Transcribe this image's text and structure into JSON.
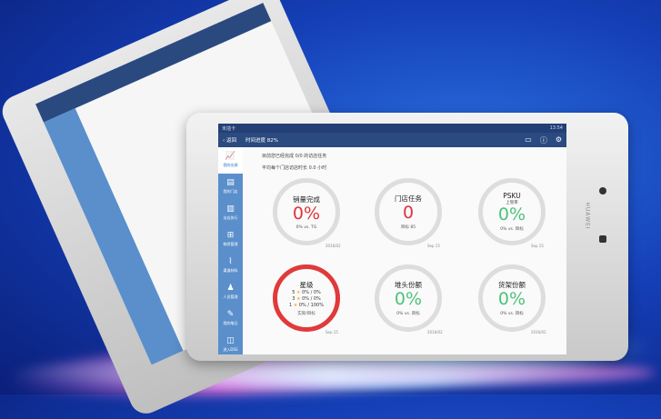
{
  "status": {
    "carrier": "未插卡",
    "time": "13:54"
  },
  "nav": {
    "back": "返回",
    "title": "时间进度 82%"
  },
  "sidebar": [
    {
      "label": "我的业绩",
      "icon": "chart-icon"
    },
    {
      "label": "我的门店",
      "icon": "store-icon"
    },
    {
      "label": "访店执行",
      "icon": "clipboard-icon"
    },
    {
      "label": "物资管理",
      "icon": "grid-icon"
    },
    {
      "label": "渠道材料",
      "icon": "paperclip-icon"
    },
    {
      "label": "人员管理",
      "icon": "people-icon"
    },
    {
      "label": "我的笔记",
      "icon": "note-icon"
    },
    {
      "label": "进入DSS",
      "icon": "dss-icon"
    }
  ],
  "info": {
    "line1": "目前您已经完成 0/0 的访店任务",
    "line2": "平均每个门店访店时长 0.0 小时"
  },
  "gauges": [
    {
      "title": "销量完成",
      "value": "0%",
      "compare": "0% vs. TG",
      "date": "2016/02",
      "color": "red"
    },
    {
      "title": "门店任务",
      "value": "0",
      "compare": "目标 85",
      "date": "Sep 15",
      "color": "red"
    },
    {
      "title": "PSKU",
      "sub": "上架率",
      "value": "0%",
      "compare": "0% vs. 目标",
      "date": "Sep 15",
      "color": "green"
    },
    {
      "title": "星级",
      "rows": [
        {
          "star": "5",
          "val": "0% / 0%"
        },
        {
          "star": "3",
          "val": "0% / 0%"
        },
        {
          "star": "1",
          "val": "0% / 100%"
        }
      ],
      "compare": "实际/目标",
      "date": "Sep 15"
    },
    {
      "title": "堆头份额",
      "value": "0%",
      "compare": "0% vs. 目标",
      "date": "2016/02",
      "color": "green"
    },
    {
      "title": "货架份额",
      "value": "0%",
      "compare": "0% vs. 目标",
      "date": "2016/02",
      "color": "green"
    }
  ],
  "device": {
    "brand": "HUAWEI"
  }
}
